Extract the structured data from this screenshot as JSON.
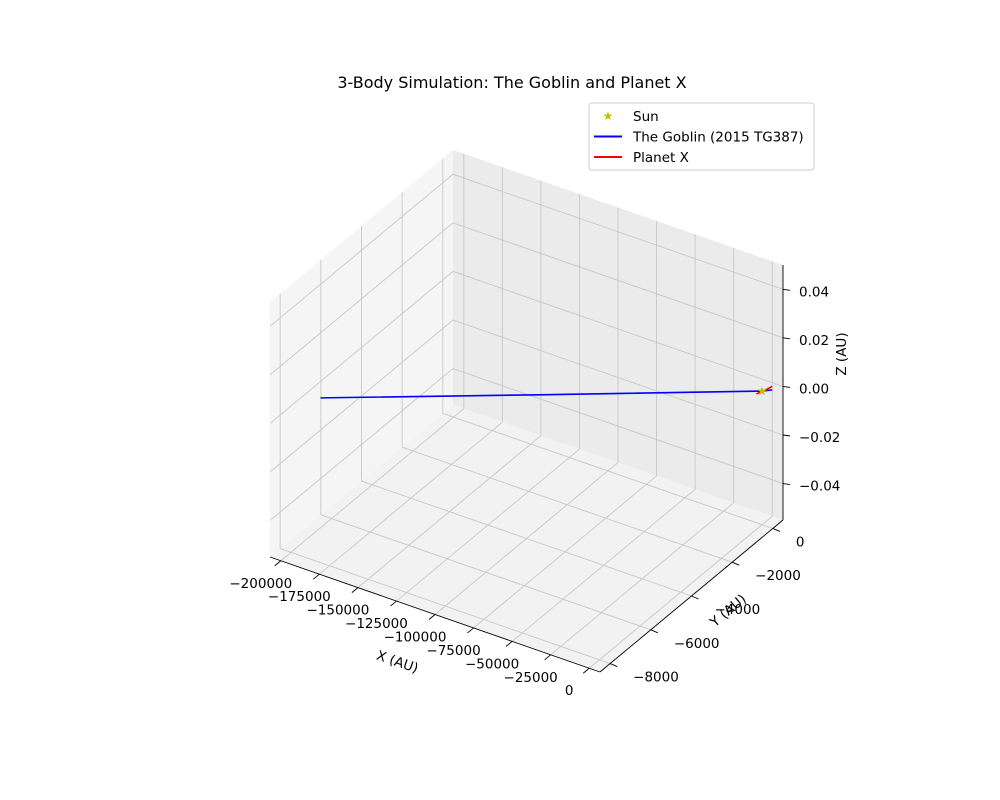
{
  "chart_data": {
    "type": "line",
    "projection": "3d",
    "title": "3-Body Simulation: The Goblin and Planet X",
    "xlabel": "X (AU)",
    "ylabel": "Y (AU)",
    "zlabel": "Z (AU)",
    "xlim": [
      -207000,
      7000
    ],
    "ylim": [
      -8500,
      500
    ],
    "zlim": [
      -0.055,
      0.05
    ],
    "x_ticks": [
      -200000,
      -175000,
      -150000,
      -125000,
      -100000,
      -75000,
      -50000,
      -25000,
      0
    ],
    "x_tick_labels": [
      "−200000",
      "−175000",
      "−150000",
      "−125000",
      "−100000",
      "−75000",
      "−50000",
      "−25000",
      "0"
    ],
    "y_ticks": [
      -8000,
      -6000,
      -4000,
      -2000,
      0
    ],
    "y_tick_labels": [
      "−8000",
      "−6000",
      "−4000",
      "−2000",
      "0"
    ],
    "z_ticks": [
      -0.04,
      -0.02,
      0.0,
      0.02,
      0.04
    ],
    "z_tick_labels": [
      "−0.04",
      "−0.02",
      "0.00",
      "0.02",
      "0.04"
    ],
    "grid": true,
    "legend_position": "top-right",
    "series": [
      {
        "name": "Sun",
        "kind": "marker",
        "marker": "star",
        "color": "#bfbf00",
        "points": [
          [
            0,
            0,
            0
          ]
        ]
      },
      {
        "name": "The Goblin (2015 TG387)",
        "kind": "line",
        "color": "#0000ff",
        "points": [
          [
            -198000,
            -6700,
            0
          ],
          [
            -100000,
            -3400,
            0
          ],
          [
            0,
            0,
            0
          ],
          [
            4000,
            200,
            0
          ]
        ]
      },
      {
        "name": "Planet X",
        "kind": "line",
        "color": "#ff0000",
        "points": [
          [
            -1000,
            -200,
            0
          ],
          [
            1000,
            100,
            0
          ],
          [
            2000,
            350,
            0
          ]
        ]
      }
    ]
  }
}
